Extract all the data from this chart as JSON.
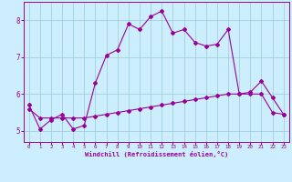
{
  "xlabel": "Windchill (Refroidissement éolien,°C)",
  "background_color": "#cceeff",
  "line_color": "#990099",
  "grid_color": "#99cccc",
  "xlim": [
    -0.5,
    23.5
  ],
  "ylim": [
    4.7,
    8.5
  ],
  "yticks": [
    5,
    6,
    7,
    8
  ],
  "xticks": [
    0,
    1,
    2,
    3,
    4,
    5,
    6,
    7,
    8,
    9,
    10,
    11,
    12,
    13,
    14,
    15,
    16,
    17,
    18,
    19,
    20,
    21,
    22,
    23
  ],
  "series1_x": [
    0,
    1,
    2,
    3,
    4,
    5,
    6,
    7,
    8,
    9,
    10,
    11,
    12,
    13,
    14,
    15,
    16,
    17,
    18,
    19,
    20,
    21,
    22,
    23
  ],
  "series1_y": [
    5.7,
    5.05,
    5.3,
    5.45,
    5.05,
    5.15,
    6.3,
    7.05,
    7.2,
    7.9,
    7.75,
    8.1,
    8.25,
    7.65,
    7.75,
    7.4,
    7.3,
    7.35,
    7.75,
    6.0,
    6.05,
    6.35,
    5.9,
    5.45
  ],
  "series2_x": [
    0,
    1,
    2,
    3,
    4,
    5,
    6,
    7,
    8,
    9,
    10,
    11,
    12,
    13,
    14,
    15,
    16,
    17,
    18,
    19,
    20,
    21,
    22,
    23
  ],
  "series2_y": [
    5.6,
    5.35,
    5.35,
    5.35,
    5.35,
    5.35,
    5.4,
    5.45,
    5.5,
    5.55,
    5.6,
    5.65,
    5.7,
    5.75,
    5.8,
    5.85,
    5.9,
    5.95,
    6.0,
    6.0,
    6.0,
    6.0,
    5.5,
    5.45
  ],
  "marker": "D",
  "markersize": 2.0,
  "linewidth": 0.8
}
